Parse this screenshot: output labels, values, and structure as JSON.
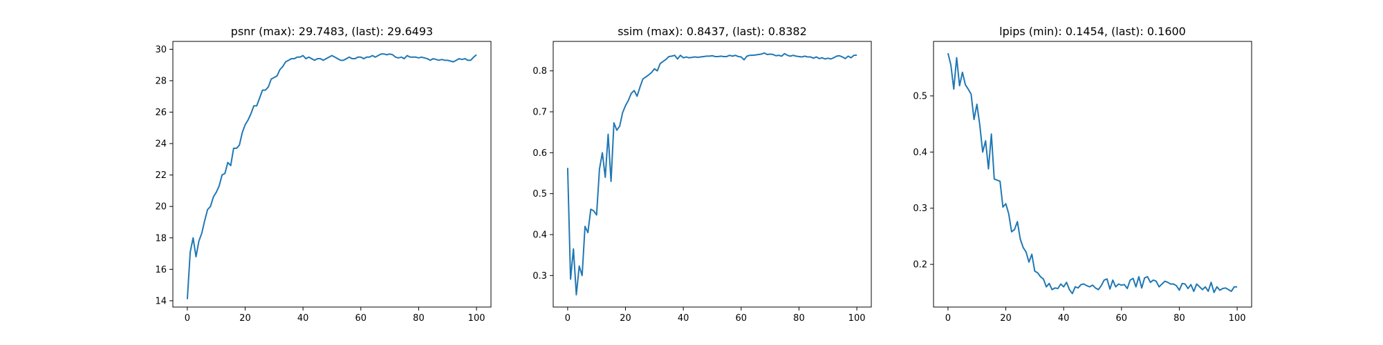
{
  "chart_data": [
    {
      "type": "line",
      "title": "psnr (max): 29.7483, (last): 29.6493",
      "xlim": [
        -5,
        105
      ],
      "ylim": [
        13.6,
        30.5
      ],
      "xticks": [
        0,
        20,
        40,
        60,
        80,
        100
      ],
      "yticks": [
        14,
        16,
        18,
        20,
        22,
        24,
        26,
        28,
        30
      ],
      "xtick_labels": [
        "0",
        "20",
        "40",
        "60",
        "80",
        "100"
      ],
      "ytick_labels": [
        "14",
        "16",
        "18",
        "20",
        "22",
        "24",
        "26",
        "28",
        "30"
      ],
      "color": "#1f77b4",
      "x": [
        0,
        1,
        2,
        3,
        4,
        5,
        6,
        7,
        8,
        9,
        10,
        11,
        12,
        13,
        14,
        15,
        16,
        17,
        18,
        19,
        20,
        21,
        22,
        23,
        24,
        25,
        26,
        27,
        28,
        29,
        30,
        31,
        32,
        33,
        34,
        35,
        36,
        37,
        38,
        39,
        40,
        41,
        42,
        43,
        44,
        45,
        46,
        47,
        48,
        49,
        50,
        51,
        52,
        53,
        54,
        55,
        56,
        57,
        58,
        59,
        60,
        61,
        62,
        63,
        64,
        65,
        66,
        67,
        68,
        69,
        70,
        71,
        72,
        73,
        74,
        75,
        76,
        77,
        78,
        79,
        80,
        81,
        82,
        83,
        84,
        85,
        86,
        87,
        88,
        89,
        90,
        91,
        92,
        93,
        94,
        95,
        96,
        97,
        98,
        99,
        100
      ],
      "y": [
        14.1,
        17.1,
        18.0,
        16.8,
        17.8,
        18.3,
        19.1,
        19.8,
        20.0,
        20.6,
        20.9,
        21.3,
        22.0,
        22.1,
        22.8,
        22.6,
        23.7,
        23.7,
        23.9,
        24.7,
        25.2,
        25.5,
        25.9,
        26.4,
        26.4,
        26.9,
        27.4,
        27.4,
        27.6,
        28.1,
        28.2,
        28.3,
        28.7,
        28.9,
        29.2,
        29.3,
        29.4,
        29.4,
        29.5,
        29.5,
        29.6,
        29.4,
        29.5,
        29.4,
        29.3,
        29.4,
        29.4,
        29.3,
        29.4,
        29.5,
        29.6,
        29.5,
        29.4,
        29.3,
        29.3,
        29.4,
        29.5,
        29.4,
        29.4,
        29.5,
        29.5,
        29.4,
        29.5,
        29.5,
        29.6,
        29.5,
        29.6,
        29.7,
        29.7,
        29.65,
        29.7,
        29.65,
        29.5,
        29.45,
        29.5,
        29.4,
        29.6,
        29.5,
        29.5,
        29.5,
        29.45,
        29.5,
        29.45,
        29.4,
        29.3,
        29.4,
        29.35,
        29.3,
        29.35,
        29.3,
        29.3,
        29.25,
        29.2,
        29.3,
        29.4,
        29.35,
        29.4,
        29.3,
        29.3,
        29.5,
        29.6493
      ]
    },
    {
      "type": "line",
      "title": "ssim (max): 0.8437, (last): 0.8382",
      "xlim": [
        -5,
        105
      ],
      "ylim": [
        0.223,
        0.872
      ],
      "xticks": [
        0,
        20,
        40,
        60,
        80,
        100
      ],
      "yticks": [
        0.3,
        0.4,
        0.5,
        0.6,
        0.7,
        0.8
      ],
      "xtick_labels": [
        "0",
        "20",
        "40",
        "60",
        "80",
        "100"
      ],
      "ytick_labels": [
        "0.3",
        "0.4",
        "0.5",
        "0.6",
        "0.7",
        "0.8"
      ],
      "color": "#1f77b4",
      "x": [
        0,
        1,
        2,
        3,
        4,
        5,
        6,
        7,
        8,
        9,
        10,
        11,
        12,
        13,
        14,
        15,
        16,
        17,
        18,
        19,
        20,
        21,
        22,
        23,
        24,
        25,
        26,
        27,
        28,
        29,
        30,
        31,
        32,
        33,
        34,
        35,
        36,
        37,
        38,
        39,
        40,
        41,
        42,
        43,
        44,
        45,
        46,
        47,
        48,
        49,
        50,
        51,
        52,
        53,
        54,
        55,
        56,
        57,
        58,
        59,
        60,
        61,
        62,
        63,
        64,
        65,
        66,
        67,
        68,
        69,
        70,
        71,
        72,
        73,
        74,
        75,
        76,
        77,
        78,
        79,
        80,
        81,
        82,
        83,
        84,
        85,
        86,
        87,
        88,
        89,
        90,
        91,
        92,
        93,
        94,
        95,
        96,
        97,
        98,
        99,
        100
      ],
      "y": [
        0.563,
        0.291,
        0.365,
        0.253,
        0.323,
        0.3,
        0.42,
        0.405,
        0.462,
        0.458,
        0.448,
        0.56,
        0.6,
        0.54,
        0.645,
        0.53,
        0.673,
        0.655,
        0.665,
        0.698,
        0.715,
        0.728,
        0.745,
        0.752,
        0.738,
        0.76,
        0.78,
        0.785,
        0.79,
        0.796,
        0.805,
        0.8,
        0.818,
        0.823,
        0.828,
        0.835,
        0.836,
        0.838,
        0.829,
        0.838,
        0.832,
        0.834,
        0.832,
        0.833,
        0.834,
        0.833,
        0.834,
        0.835,
        0.836,
        0.836,
        0.837,
        0.835,
        0.835,
        0.836,
        0.835,
        0.835,
        0.838,
        0.836,
        0.838,
        0.835,
        0.834,
        0.827,
        0.836,
        0.838,
        0.838,
        0.839,
        0.84,
        0.841,
        0.8437,
        0.84,
        0.841,
        0.84,
        0.837,
        0.838,
        0.836,
        0.842,
        0.838,
        0.836,
        0.838,
        0.836,
        0.835,
        0.834,
        0.836,
        0.834,
        0.834,
        0.831,
        0.834,
        0.83,
        0.832,
        0.829,
        0.831,
        0.829,
        0.832,
        0.836,
        0.837,
        0.834,
        0.83,
        0.836,
        0.832,
        0.838,
        0.8382
      ]
    },
    {
      "type": "line",
      "title": "lpips (min): 0.1454, (last): 0.1600",
      "xlim": [
        -5,
        105
      ],
      "ylim": [
        0.124,
        0.597
      ],
      "xticks": [
        0,
        20,
        40,
        60,
        80,
        100
      ],
      "yticks": [
        0.2,
        0.3,
        0.4,
        0.5
      ],
      "xtick_labels": [
        "0",
        "20",
        "40",
        "60",
        "80",
        "100"
      ],
      "ytick_labels": [
        "0.2",
        "0.3",
        "0.4",
        "0.5"
      ],
      "color": "#1f77b4",
      "x": [
        0,
        1,
        2,
        3,
        4,
        5,
        6,
        7,
        8,
        9,
        10,
        11,
        12,
        13,
        14,
        15,
        16,
        17,
        18,
        19,
        20,
        21,
        22,
        23,
        24,
        25,
        26,
        27,
        28,
        29,
        30,
        31,
        32,
        33,
        34,
        35,
        36,
        37,
        38,
        39,
        40,
        41,
        42,
        43,
        44,
        45,
        46,
        47,
        48,
        49,
        50,
        51,
        52,
        53,
        54,
        55,
        56,
        57,
        58,
        59,
        60,
        61,
        62,
        63,
        64,
        65,
        66,
        67,
        68,
        69,
        70,
        71,
        72,
        73,
        74,
        75,
        76,
        77,
        78,
        79,
        80,
        81,
        82,
        83,
        84,
        85,
        86,
        87,
        88,
        89,
        90,
        91,
        92,
        93,
        94,
        95,
        96,
        97,
        98,
        99,
        100
      ],
      "y": [
        0.576,
        0.555,
        0.512,
        0.568,
        0.518,
        0.542,
        0.52,
        0.512,
        0.503,
        0.458,
        0.485,
        0.448,
        0.4,
        0.42,
        0.37,
        0.432,
        0.352,
        0.35,
        0.348,
        0.302,
        0.308,
        0.29,
        0.258,
        0.262,
        0.276,
        0.245,
        0.23,
        0.222,
        0.204,
        0.218,
        0.188,
        0.185,
        0.178,
        0.174,
        0.16,
        0.166,
        0.155,
        0.158,
        0.157,
        0.165,
        0.16,
        0.168,
        0.155,
        0.148,
        0.16,
        0.158,
        0.164,
        0.165,
        0.162,
        0.16,
        0.163,
        0.158,
        0.155,
        0.162,
        0.172,
        0.174,
        0.156,
        0.172,
        0.16,
        0.165,
        0.163,
        0.164,
        0.157,
        0.172,
        0.175,
        0.16,
        0.178,
        0.158,
        0.176,
        0.178,
        0.168,
        0.172,
        0.17,
        0.16,
        0.165,
        0.17,
        0.168,
        0.165,
        0.165,
        0.162,
        0.154,
        0.166,
        0.165,
        0.157,
        0.164,
        0.152,
        0.165,
        0.16,
        0.155,
        0.16,
        0.152,
        0.168,
        0.15,
        0.16,
        0.154,
        0.157,
        0.158,
        0.155,
        0.152,
        0.16,
        0.16
      ]
    }
  ]
}
